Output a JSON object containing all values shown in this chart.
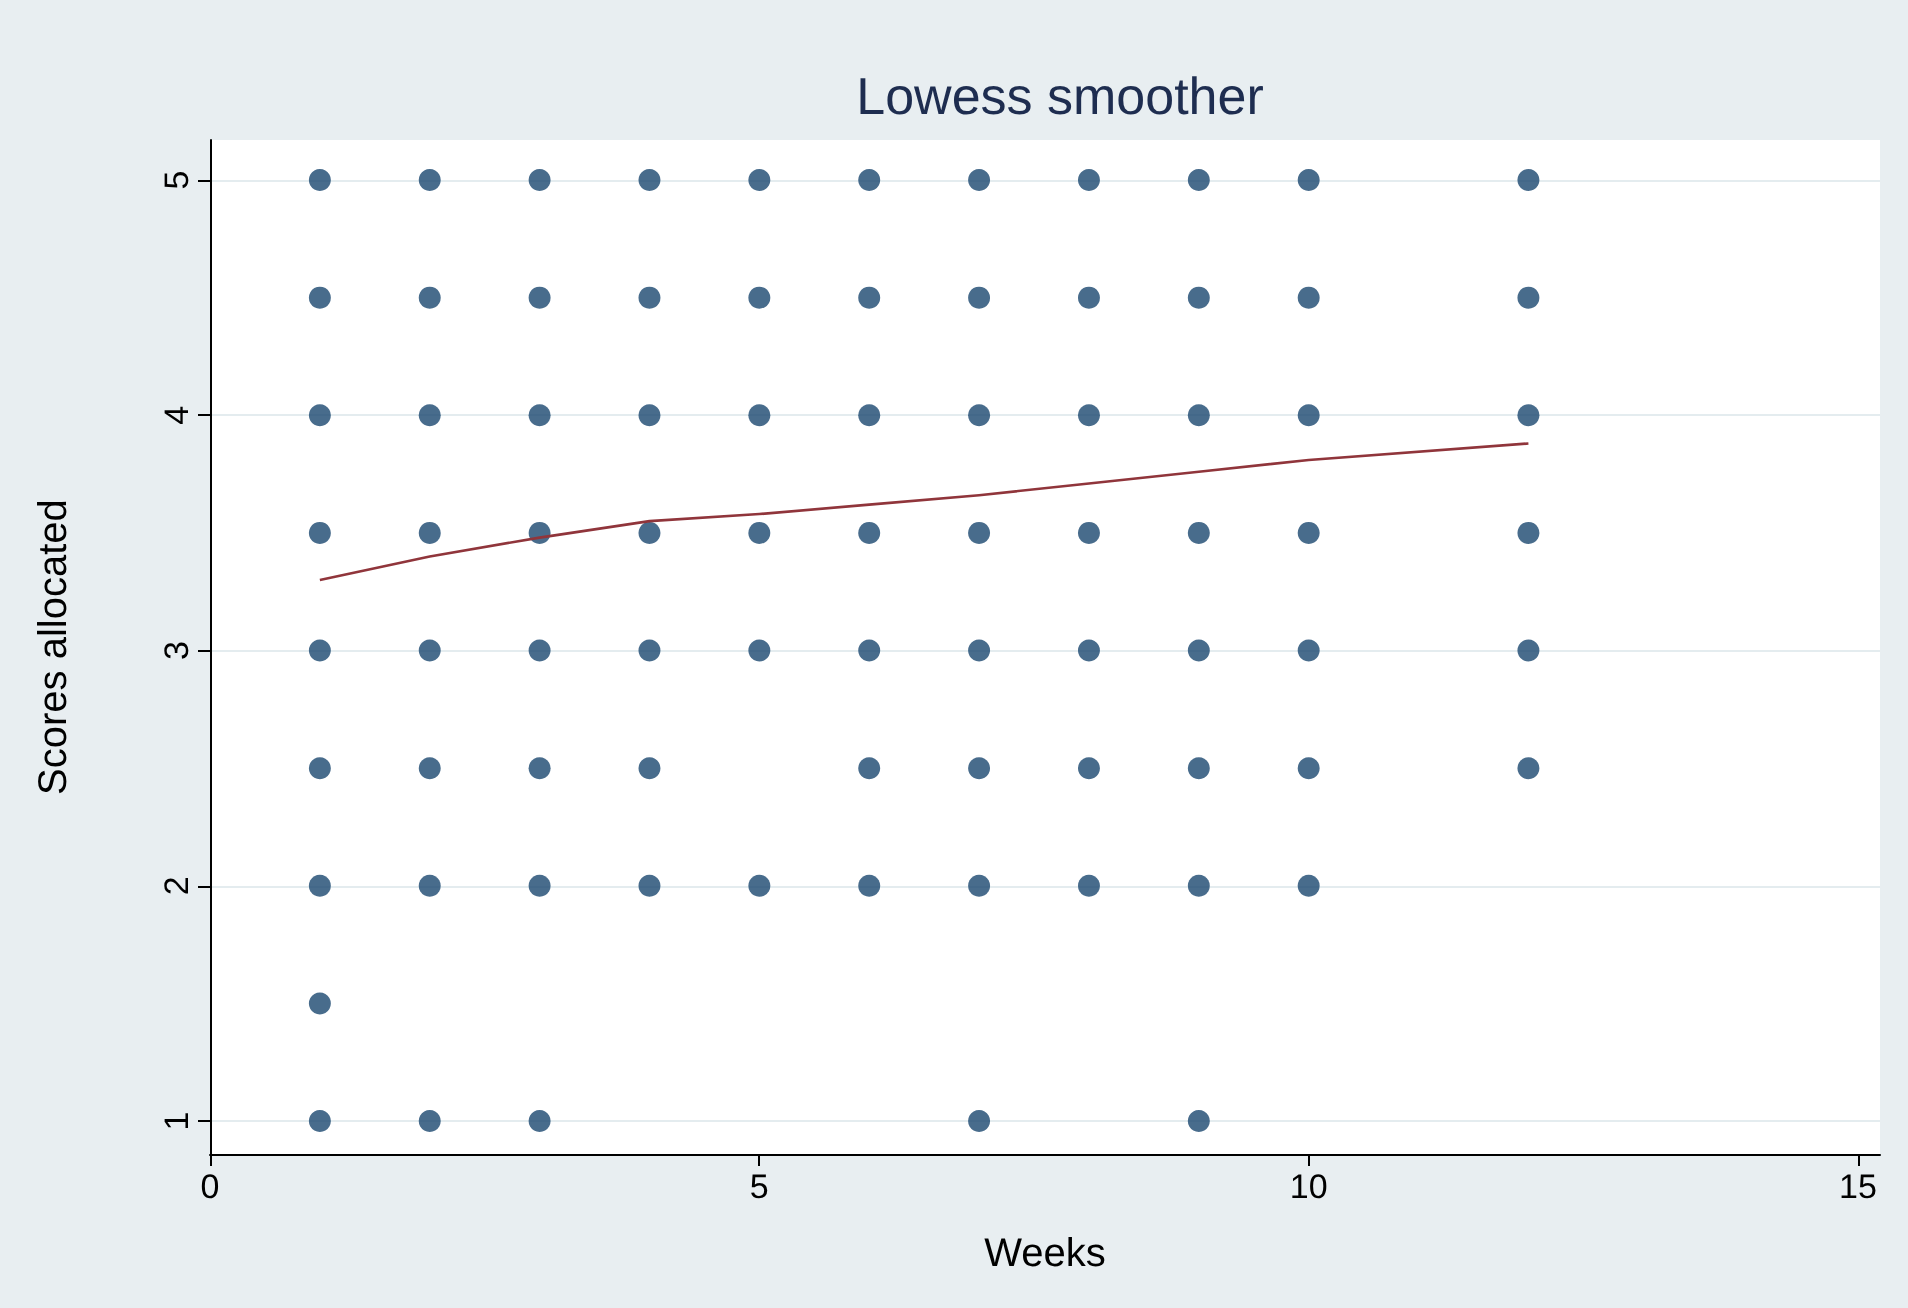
{
  "chart_data": {
    "type": "scatter",
    "title": "Lowess smoother",
    "xlabel": "Weeks",
    "ylabel": "Scores allocated",
    "xlim": [
      0,
      15.2
    ],
    "xticks": [
      0,
      5,
      10,
      15
    ],
    "ylim": [
      0.86,
      5.17
    ],
    "yticks": [
      1,
      2,
      3,
      4,
      5
    ],
    "grid": "y",
    "series": [
      {
        "color": "#1a476f",
        "marker": "circle",
        "x": [
          1,
          1,
          1,
          1,
          1,
          1,
          1,
          1,
          1,
          2,
          2,
          2,
          2,
          2,
          2,
          2,
          2,
          3,
          3,
          3,
          3,
          3,
          3,
          3,
          3,
          4,
          4,
          4,
          4,
          4,
          4,
          4,
          5,
          5,
          5,
          5,
          5,
          5,
          6,
          6,
          6,
          6,
          6,
          6,
          6,
          7,
          7,
          7,
          7,
          7,
          7,
          7,
          7,
          8,
          8,
          8,
          8,
          8,
          8,
          8,
          9,
          9,
          9,
          9,
          9,
          9,
          9,
          9,
          10,
          10,
          10,
          10,
          10,
          10,
          10,
          12,
          12,
          12,
          12,
          12,
          12
        ],
        "values": [
          5,
          4.5,
          4,
          3.5,
          3,
          2.5,
          2,
          1.5,
          1,
          5,
          4.5,
          4,
          3.5,
          3,
          2.5,
          2,
          1,
          5,
          4.5,
          4,
          3.5,
          3,
          2.5,
          2,
          1,
          5,
          4.5,
          4,
          3.5,
          3,
          2.5,
          2,
          5,
          4.5,
          4,
          3.5,
          3,
          2,
          5,
          4.5,
          4,
          3.5,
          3,
          2.5,
          2,
          5,
          4.5,
          4,
          3.5,
          3,
          2.5,
          2,
          1,
          5,
          4.5,
          4,
          3.5,
          3,
          2.5,
          2,
          5,
          4.5,
          4,
          3.5,
          3,
          2.5,
          2,
          1,
          5,
          4.5,
          4,
          3.5,
          3,
          2.5,
          2,
          5,
          4.5,
          4,
          3.5,
          3,
          2.5
        ]
      },
      {
        "type": "line",
        "color": "#90353b",
        "marker": "none",
        "line_style": "solid",
        "x": [
          1,
          2,
          3,
          4,
          5,
          6,
          7,
          8,
          9,
          10,
          12
        ],
        "values": [
          3.3,
          3.4,
          3.48,
          3.55,
          3.58,
          3.62,
          3.66,
          3.71,
          3.76,
          3.81,
          3.88
        ]
      }
    ]
  }
}
